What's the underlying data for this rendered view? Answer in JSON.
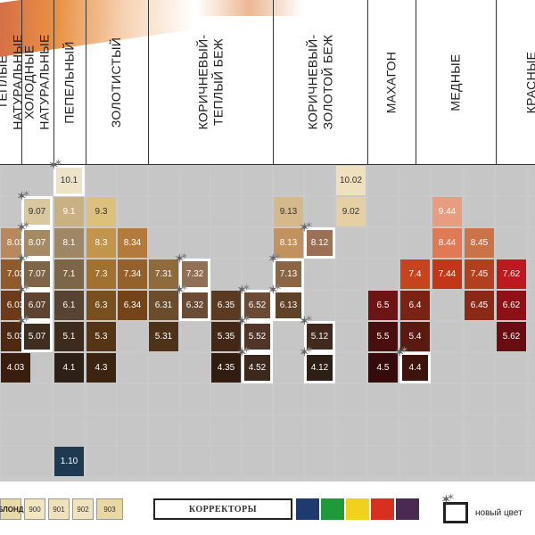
{
  "headers": {
    "teplye": "ТЕПЛЫЕ\nНАТУРАЛЬНЫЕ",
    "holodnye": "ХОЛОДНЫЕ\nНАТУРАЛЬНЫЕ",
    "pepelny": "ПЕПЕЛЬНЫЙ",
    "zolotisty": "ЗОЛОТИСТЫЙ",
    "kor_tepl": "КОРИЧНЕВЫЙ-\nТЕПЛЫЙ БЕЖ",
    "kor_zol": "КОРИЧНЕВЫЙ-\nЗОЛОТОЙ БЕЖ",
    "mahagon": "МАХАГОН",
    "mednye": "МЕДНЫЕ",
    "krasnye": "КРАСНЫЕ"
  },
  "cells": [
    {
      "label": "10.1",
      "fill": "#ede3c9",
      "text": "dark"
    },
    {
      "label": "10.02",
      "fill": "#efe1bd",
      "text": "dark"
    },
    {
      "label": "9.07",
      "fill": "#d9c79d",
      "text": "dark"
    },
    {
      "label": "9.1",
      "fill": "#c9b184",
      "text": "light"
    },
    {
      "label": "9.3",
      "fill": "#dcc07e",
      "text": "dark"
    },
    {
      "label": "9.13",
      "fill": "#d6b98a",
      "text": "dark"
    },
    {
      "label": "9.02",
      "fill": "#e4d0a2",
      "text": "dark"
    },
    {
      "label": "9.44",
      "fill": "#e89d80",
      "text": "light"
    },
    {
      "label": "8.03",
      "fill": "#b8895d",
      "text": "light"
    },
    {
      "label": "8.07",
      "fill": "#a68a64",
      "text": "light"
    },
    {
      "label": "8.1",
      "fill": "#9e8765",
      "text": "light"
    },
    {
      "label": "8.3",
      "fill": "#c2954d",
      "text": "light"
    },
    {
      "label": "8.34",
      "fill": "#b27a3c",
      "text": "light"
    },
    {
      "label": "8.13",
      "fill": "#c1915e",
      "text": "light"
    },
    {
      "label": "8.12",
      "fill": "#9c7054",
      "text": "light"
    },
    {
      "label": "8.44",
      "fill": "#df7a55",
      "text": "light"
    },
    {
      "label": "8.45",
      "fill": "#cb7247",
      "text": "light"
    },
    {
      "label": "7.03",
      "fill": "#8f5a2c",
      "text": "light"
    },
    {
      "label": "7.07",
      "fill": "#806447",
      "text": "light"
    },
    {
      "label": "7.1",
      "fill": "#7d6647",
      "text": "light"
    },
    {
      "label": "7.3",
      "fill": "#a0712f",
      "text": "light"
    },
    {
      "label": "7.34",
      "fill": "#94602b",
      "text": "light"
    },
    {
      "label": "7.31",
      "fill": "#8e6a3d",
      "text": "light"
    },
    {
      "label": "7.32",
      "fill": "#927055",
      "text": "light"
    },
    {
      "label": "7.13",
      "fill": "#8c6642",
      "text": "light"
    },
    {
      "label": "7.4",
      "fill": "#c6441d",
      "text": "light"
    },
    {
      "label": "7.44",
      "fill": "#c33719",
      "text": "light"
    },
    {
      "label": "7.45",
      "fill": "#b2401e",
      "text": "light"
    },
    {
      "label": "7.62",
      "fill": "#bd1a1f",
      "text": "light"
    },
    {
      "label": "6.03",
      "fill": "#6b3b1a",
      "text": "light"
    },
    {
      "label": "6.07",
      "fill": "#5e4430",
      "text": "light"
    },
    {
      "label": "6.1",
      "fill": "#574331",
      "text": "light"
    },
    {
      "label": "6.3",
      "fill": "#78501f",
      "text": "light"
    },
    {
      "label": "6.34",
      "fill": "#744418",
      "text": "light"
    },
    {
      "label": "6.31",
      "fill": "#6b4d2c",
      "text": "light"
    },
    {
      "label": "6.32",
      "fill": "#6a4b36",
      "text": "light"
    },
    {
      "label": "6.35",
      "fill": "#5b3a22",
      "text": "light"
    },
    {
      "label": "6.52",
      "fill": "#6b4a36",
      "text": "light"
    },
    {
      "label": "6.13",
      "fill": "#604227",
      "text": "light"
    },
    {
      "label": "6.5",
      "fill": "#6e1414",
      "text": "light"
    },
    {
      "label": "6.4",
      "fill": "#7a2313",
      "text": "light"
    },
    {
      "label": "6.45",
      "fill": "#8a2a16",
      "text": "light"
    },
    {
      "label": "6.62",
      "fill": "#8f1016",
      "text": "light"
    },
    {
      "label": "5.03",
      "fill": "#4f2a12",
      "text": "light"
    },
    {
      "label": "5.07",
      "fill": "#3f2d20",
      "text": "light"
    },
    {
      "label": "5.1",
      "fill": "#3d2c1e",
      "text": "light"
    },
    {
      "label": "5.3",
      "fill": "#553515",
      "text": "light"
    },
    {
      "label": "5.31",
      "fill": "#4e3319",
      "text": "light"
    },
    {
      "label": "5.35",
      "fill": "#432815",
      "text": "light"
    },
    {
      "label": "5.52",
      "fill": "#513528",
      "text": "light"
    },
    {
      "label": "5.12",
      "fill": "#3f2a1d",
      "text": "light"
    },
    {
      "label": "5.5",
      "fill": "#4a0e0e",
      "text": "light"
    },
    {
      "label": "5.4",
      "fill": "#5a1a0f",
      "text": "light"
    },
    {
      "label": "5.62",
      "fill": "#6a0d12",
      "text": "light"
    },
    {
      "label": "4.03",
      "fill": "#3a1e0d",
      "text": "light"
    },
    {
      "label": "4.1",
      "fill": "#2d2016",
      "text": "light"
    },
    {
      "label": "4.3",
      "fill": "#3b2410",
      "text": "light"
    },
    {
      "label": "4.35",
      "fill": "#311d10",
      "text": "light"
    },
    {
      "label": "4.52",
      "fill": "#3d281e",
      "text": "light"
    },
    {
      "label": "4.12",
      "fill": "#2e1f16",
      "text": "light"
    },
    {
      "label": "4.5",
      "fill": "#360b0b",
      "text": "light"
    },
    {
      "label": "4.4",
      "fill": "#3e130b",
      "text": "light"
    },
    {
      "label": "1.10",
      "fill": "#1d3a52",
      "text": "light"
    }
  ],
  "legend": {
    "blond_label": "БЛОНД",
    "blond_codes": [
      "900",
      "901",
      "902",
      "903"
    ],
    "correctors_label": "КОРРЕКТОРЫ",
    "corrector_colors": [
      "#1e3a6e",
      "#1f9a3a",
      "#f0d21e",
      "#d8301f",
      "#4a2a52"
    ],
    "new_color_label": "новый цвет"
  }
}
